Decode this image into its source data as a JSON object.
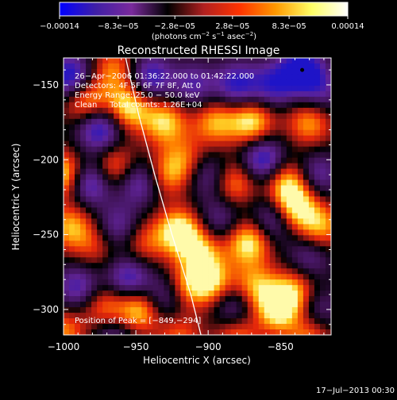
{
  "chart_data": {
    "type": "heatmap",
    "title": "Reconstructed RHESSI Image",
    "xlabel": "Heliocentric X (arcsec)",
    "ylabel": "Heliocentric Y (arcsec)",
    "xlim": [
      -1000,
      -815
    ],
    "ylim": [
      -317,
      -132
    ],
    "x_ticks": [
      -1000,
      -950,
      -900,
      -850
    ],
    "x_tick_labels": [
      "−1000",
      "−950",
      "−900",
      "−850"
    ],
    "y_ticks": [
      -150,
      -200,
      -250,
      -300
    ],
    "y_tick_labels": [
      "−150",
      "−200",
      "−250",
      "−300"
    ],
    "colorbar": {
      "ticks": [
        -0.00014,
        -8.3e-05,
        -2.8e-05,
        2.8e-05,
        8.3e-05,
        0.00014
      ],
      "tick_labels": [
        "−0.00014",
        "−8.3e−05",
        "−2.8e−05",
        "2.8e−05",
        "8.3e−05",
        "0.00014"
      ],
      "unit_main": "(photons cm",
      "unit_sup1": "−2",
      "unit_mid1": " s",
      "unit_sup2": "−1",
      "unit_mid2": " asec",
      "unit_sup3": "−2",
      "unit_end": ")",
      "colors": [
        "#0000ff",
        "#3f1fa6",
        "#7a2a9c",
        "#000000",
        "#b02020",
        "#ff3300",
        "#ff9900",
        "#ffff66",
        "#ffffff"
      ]
    },
    "info_lines": [
      "26−Apr−2006 01:36:22.000 to 01:42:22.000",
      "Detectors: 4F 5F 6F 7F 8F, Att 0",
      "Energy Range: 25.0 − 50.0 keV",
      "Clean     Total counts: 1.26E+04"
    ],
    "peak_label": "Position of Peak = [−849,−294]",
    "peak_position": [
      -849,
      -294
    ],
    "limb": [
      [
        -957,
        -132
      ],
      [
        -948,
        -170
      ],
      [
        -937,
        -210
      ],
      [
        -925,
        -250
      ],
      [
        -912,
        -290
      ],
      [
        -905,
        -317
      ]
    ],
    "blobs": [
      {
        "x": -995,
        "y": -145,
        "v": -1.0
      },
      {
        "x": -985,
        "y": -160,
        "v": 0.8
      },
      {
        "x": -965,
        "y": -140,
        "v": 0.6
      },
      {
        "x": -975,
        "y": -180,
        "v": -0.9
      },
      {
        "x": -955,
        "y": -165,
        "v": 0.9
      },
      {
        "x": -940,
        "y": -145,
        "v": -0.8
      },
      {
        "x": -930,
        "y": -175,
        "v": 0.8
      },
      {
        "x": -910,
        "y": -150,
        "v": -0.6
      },
      {
        "x": -895,
        "y": -175,
        "v": 0.7
      },
      {
        "x": -880,
        "y": -150,
        "v": -0.8
      },
      {
        "x": -870,
        "y": -175,
        "v": 0.9
      },
      {
        "x": -855,
        "y": -150,
        "v": -0.7
      },
      {
        "x": -835,
        "y": -140,
        "v": -1.0
      },
      {
        "x": -830,
        "y": -175,
        "v": 0.7
      },
      {
        "x": -822,
        "y": -155,
        "v": -0.5
      },
      {
        "x": -1000,
        "y": -210,
        "v": 0.95
      },
      {
        "x": -982,
        "y": -215,
        "v": -0.9
      },
      {
        "x": -965,
        "y": -205,
        "v": 0.7
      },
      {
        "x": -948,
        "y": -215,
        "v": -0.7
      },
      {
        "x": -928,
        "y": -210,
        "v": 0.6
      },
      {
        "x": -915,
        "y": -200,
        "v": 0.5
      },
      {
        "x": -900,
        "y": -210,
        "v": -0.6
      },
      {
        "x": -882,
        "y": -215,
        "v": 0.7
      },
      {
        "x": -862,
        "y": -200,
        "v": -0.9
      },
      {
        "x": -845,
        "y": -215,
        "v": 0.8
      },
      {
        "x": -825,
        "y": -210,
        "v": -0.6
      },
      {
        "x": -995,
        "y": -245,
        "v": 0.7
      },
      {
        "x": -978,
        "y": -258,
        "v": 0.4
      },
      {
        "x": -962,
        "y": -245,
        "v": -0.6
      },
      {
        "x": -945,
        "y": -255,
        "v": 0.5
      },
      {
        "x": -920,
        "y": -248,
        "v": 1.0
      },
      {
        "x": -905,
        "y": -262,
        "v": 0.7
      },
      {
        "x": -892,
        "y": -240,
        "v": -0.5
      },
      {
        "x": -872,
        "y": -255,
        "v": 0.95
      },
      {
        "x": -855,
        "y": -240,
        "v": -0.7
      },
      {
        "x": -840,
        "y": -232,
        "v": 0.95
      },
      {
        "x": -822,
        "y": -245,
        "v": 0.7
      },
      {
        "x": -830,
        "y": -265,
        "v": -0.5
      },
      {
        "x": -990,
        "y": -285,
        "v": -0.7
      },
      {
        "x": -972,
        "y": -298,
        "v": 0.6
      },
      {
        "x": -955,
        "y": -280,
        "v": -0.8
      },
      {
        "x": -948,
        "y": -300,
        "v": 0.9
      },
      {
        "x": -930,
        "y": -292,
        "v": -0.6
      },
      {
        "x": -915,
        "y": -285,
        "v": 0.6
      },
      {
        "x": -898,
        "y": -282,
        "v": 0.8
      },
      {
        "x": -882,
        "y": -298,
        "v": -0.6
      },
      {
        "x": -868,
        "y": -285,
        "v": 0.7
      },
      {
        "x": -852,
        "y": -300,
        "v": 0.9
      },
      {
        "x": -840,
        "y": -288,
        "v": 0.7
      },
      {
        "x": -825,
        "y": -300,
        "v": -0.5
      },
      {
        "x": -1000,
        "y": -315,
        "v": 0.6
      },
      {
        "x": -965,
        "y": -318,
        "v": -0.5
      },
      {
        "x": -920,
        "y": -318,
        "v": 0.5
      },
      {
        "x": -880,
        "y": -318,
        "v": 0.6
      },
      {
        "x": -830,
        "y": -318,
        "v": 0.6
      }
    ]
  },
  "footer": {
    "timestamp": "17−Jul−2013 00:30"
  }
}
